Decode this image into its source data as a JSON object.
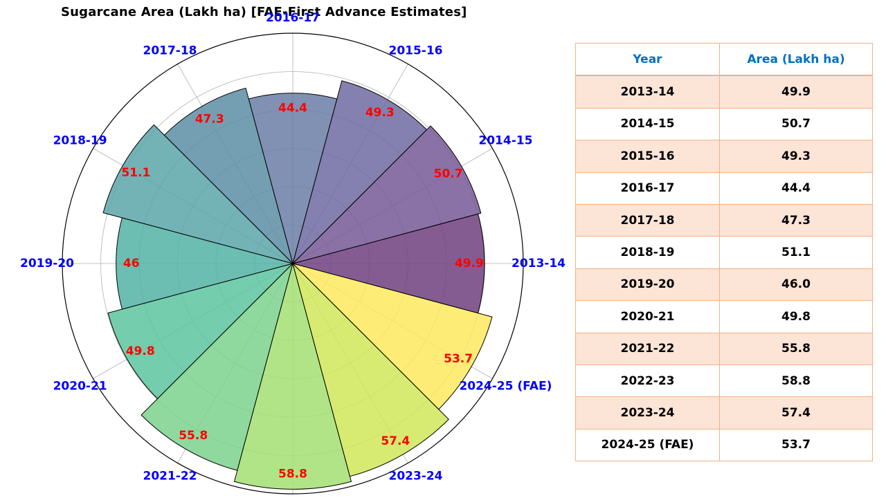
{
  "chart_data": {
    "type": "polar-bar",
    "title": "Sugarcane Area (Lakh ha) [FAE-First Advance Estimates]",
    "categories": [
      "2013-14",
      "2014-15",
      "2015-16",
      "2016-17",
      "2017-18",
      "2018-19",
      "2019-20",
      "2020-21",
      "2021-22",
      "2022-23",
      "2023-24",
      "2024-25 (FAE)"
    ],
    "values": [
      49.9,
      50.7,
      49.3,
      44.4,
      47.3,
      51.1,
      46,
      49.8,
      55.8,
      58.8,
      57.4,
      53.7
    ],
    "value_labels": [
      "49.9",
      "50.7",
      "49.3",
      "44.4",
      "47.3",
      "51.1",
      "46",
      "49.8",
      "55.8",
      "58.8",
      "57.4",
      "53.7"
    ],
    "rlim": [
      0,
      60
    ],
    "grid": true,
    "colormap": "viridis",
    "colors": [
      "#6f3f7f",
      "#775996",
      "#6f6aa2",
      "#6b7ea6",
      "#5c8ea4",
      "#5aa4a8",
      "#52b2a5",
      "#5cc49d",
      "#7bd18d",
      "#a3df72",
      "#d0e659",
      "#fde95d"
    ],
    "category_label_color": "#0000ff",
    "value_label_color": "#ff0000"
  },
  "table": {
    "headers": [
      "Year",
      "Area (Lakh ha)"
    ],
    "rows": [
      [
        "2013-14",
        "49.9"
      ],
      [
        "2014-15",
        "50.7"
      ],
      [
        "2015-16",
        "49.3"
      ],
      [
        "2016-17",
        "44.4"
      ],
      [
        "2017-18",
        "47.3"
      ],
      [
        "2018-19",
        "51.1"
      ],
      [
        "2019-20",
        "46.0"
      ],
      [
        "2020-21",
        "49.8"
      ],
      [
        "2021-22",
        "55.8"
      ],
      [
        "2022-23",
        "58.8"
      ],
      [
        "2023-24",
        "57.4"
      ],
      [
        "2024-25 (FAE)",
        "53.7"
      ]
    ]
  }
}
